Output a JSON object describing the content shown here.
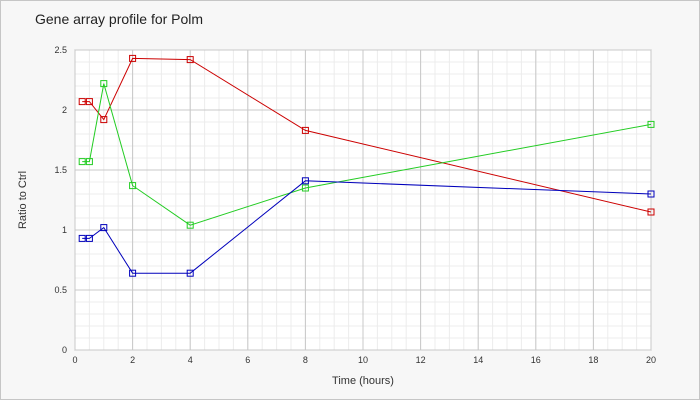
{
  "chart_data": {
    "type": "line",
    "title": "Gene array profile for Polm",
    "xlabel": "Time (hours)",
    "ylabel": "Ratio to Ctrl",
    "xlim": [
      0,
      20
    ],
    "ylim": [
      0,
      2.5
    ],
    "x_ticks": [
      0,
      2,
      4,
      6,
      8,
      10,
      12,
      14,
      16,
      18,
      20
    ],
    "y_ticks": [
      0,
      0.5,
      1,
      1.5,
      2,
      2.5
    ],
    "y_tick_labels": [
      "0",
      "0.5",
      "1",
      "1.5",
      "2",
      "2.5"
    ],
    "grid": true,
    "marker": "square",
    "series": [
      {
        "color": "#cc0000",
        "points": [
          [
            0.25,
            2.07
          ],
          [
            0.5,
            2.07
          ],
          [
            1,
            1.92
          ],
          [
            2,
            2.43
          ],
          [
            4,
            2.42
          ],
          [
            8,
            1.83
          ],
          [
            20,
            1.15
          ]
        ]
      },
      {
        "color": "#22cc22",
        "points": [
          [
            0.25,
            1.57
          ],
          [
            0.5,
            1.57
          ],
          [
            1,
            2.22
          ],
          [
            2,
            1.37
          ],
          [
            4,
            1.04
          ],
          [
            8,
            1.35
          ],
          [
            20,
            1.88
          ]
        ]
      },
      {
        "color": "#0000bb",
        "points": [
          [
            0.25,
            0.93
          ],
          [
            0.5,
            0.93
          ],
          [
            1,
            1.02
          ],
          [
            2,
            0.64
          ],
          [
            4,
            0.64
          ],
          [
            8,
            1.41
          ],
          [
            20,
            1.3
          ]
        ]
      }
    ]
  }
}
